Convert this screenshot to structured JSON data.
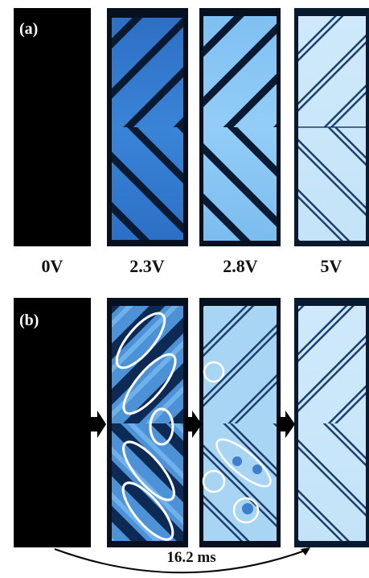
{
  "panel_a": {
    "label": "(a)",
    "voltages": [
      "0V",
      "2.3V",
      "2.8V",
      "5V"
    ]
  },
  "panel_b": {
    "label": "(b)",
    "duration": "16.2 ms"
  }
}
